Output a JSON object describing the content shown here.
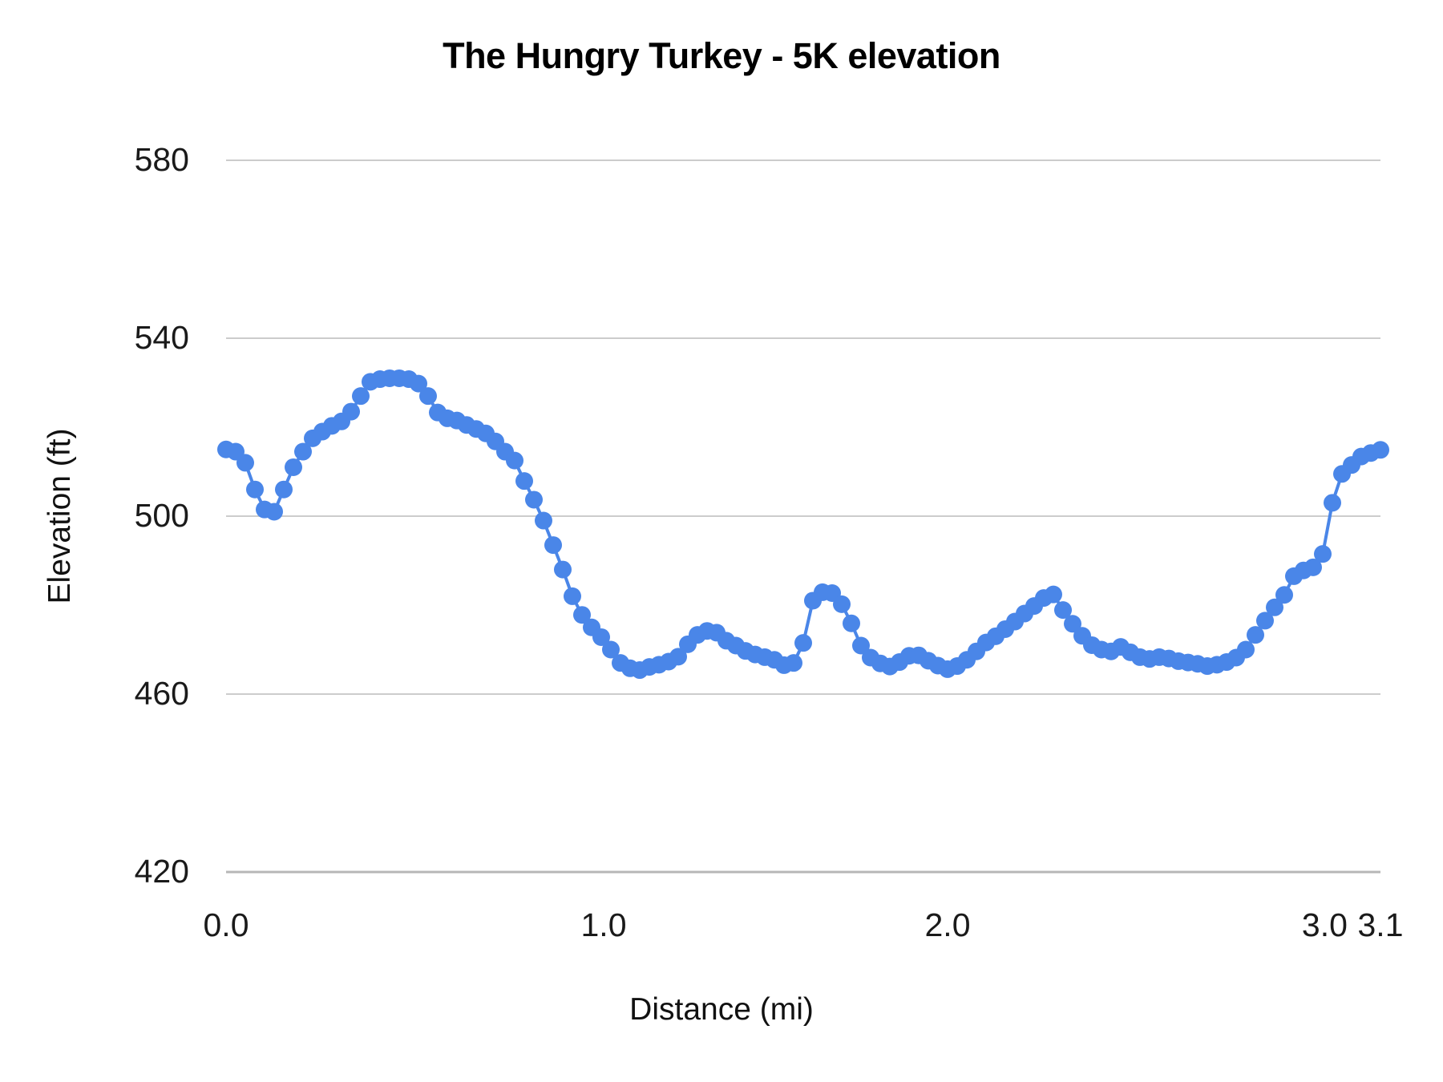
{
  "title": "The Hungry Turkey - 5K elevation",
  "chart_data": {
    "type": "line",
    "title": "The Hungry Turkey - 5K elevation",
    "xlabel": "Distance (mi)",
    "ylabel": "Elevation (ft)",
    "ylim": [
      420,
      580
    ],
    "grid": true,
    "legend": "none",
    "marker_color": "#4a86e8",
    "line_color": "#4a86e8",
    "grid_color": "#cccccc",
    "axis_line_color": "#b7b7b7",
    "y_ticks": [
      {
        "label": "580",
        "value": 580
      },
      {
        "label": "540",
        "value": 540
      },
      {
        "label": "500",
        "value": 500
      },
      {
        "label": "460",
        "value": 460
      },
      {
        "label": "420",
        "value": 420
      }
    ],
    "x_ticks": [
      {
        "label": "0.0",
        "index": 0
      },
      {
        "label": "1.0",
        "index": 39.25
      },
      {
        "label": "2.0",
        "index": 75
      },
      {
        "label": "3.0",
        "index": 114.2
      },
      {
        "label": "3.1",
        "index": 120
      }
    ],
    "distance_mi": [
      0,
      0.03,
      0.05,
      0.08,
      0.1,
      0.13,
      0.15,
      0.18,
      0.2,
      0.23,
      0.25,
      0.28,
      0.31,
      0.33,
      0.36,
      0.38,
      0.41,
      0.43,
      0.46,
      0.48,
      0.51,
      0.54,
      0.56,
      0.59,
      0.61,
      0.64,
      0.66,
      0.69,
      0.71,
      0.74,
      0.76,
      0.79,
      0.82,
      0.84,
      0.87,
      0.89,
      0.92,
      0.94,
      0.97,
      0.99,
      1.02,
      1.05,
      1.08,
      1.1,
      1.13,
      1.16,
      1.19,
      1.22,
      1.24,
      1.27,
      1.3,
      1.33,
      1.36,
      1.38,
      1.41,
      1.44,
      1.47,
      1.5,
      1.52,
      1.55,
      1.58,
      1.61,
      1.64,
      1.66,
      1.69,
      1.72,
      1.75,
      1.78,
      1.8,
      1.83,
      1.86,
      1.89,
      1.92,
      1.94,
      1.97,
      2,
      2.03,
      2.05,
      2.08,
      2.1,
      2.13,
      2.15,
      2.18,
      2.2,
      2.23,
      2.26,
      2.28,
      2.31,
      2.33,
      2.36,
      2.38,
      2.41,
      2.43,
      2.46,
      2.48,
      2.51,
      2.54,
      2.56,
      2.59,
      2.61,
      2.64,
      2.66,
      2.69,
      2.71,
      2.74,
      2.77,
      2.79,
      2.82,
      2.84,
      2.87,
      2.89,
      2.92,
      2.94,
      2.97,
      3,
      3.01,
      3.03,
      3.05,
      3.07,
      3.08,
      3.1
    ],
    "elevation_ft": [
      515,
      514.5,
      512,
      506,
      501.5,
      501,
      506,
      511,
      514.5,
      517.5,
      519,
      520.3,
      521.3,
      523.5,
      527,
      530.2,
      530.8,
      531,
      531,
      530.8,
      529.8,
      527,
      523.3,
      522,
      521.5,
      520.5,
      519.6,
      518.6,
      516.8,
      514.5,
      512.5,
      507.9,
      503.7,
      499,
      493.5,
      488,
      482,
      477.8,
      475,
      472.8,
      470,
      467,
      465.8,
      465.4,
      466.1,
      466.6,
      467.3,
      468.4,
      471.2,
      473.3,
      474.2,
      473.8,
      472,
      470.9,
      469.7,
      468.9,
      468.3,
      467.7,
      466.5,
      467,
      471.5,
      481,
      482.9,
      482.7,
      480.2,
      475.9,
      470.9,
      468.2,
      466.9,
      466.2,
      467.2,
      468.6,
      468.7,
      467.5,
      466.4,
      465.6,
      466.3,
      467.7,
      469.6,
      471.6,
      473,
      474.6,
      476.3,
      478.1,
      479.8,
      481.6,
      482.4,
      478.9,
      475.8,
      473.1,
      471,
      470,
      469.6,
      470.6,
      469.4,
      468.3,
      467.9,
      468.3,
      468,
      467.4,
      467.1,
      466.8,
      466.3,
      466.6,
      467.2,
      468.2,
      470,
      473.3,
      476.5,
      479.5,
      482.3,
      486.5,
      487.8,
      488.5,
      491.5,
      503,
      509.5,
      511.5,
      513.4,
      514.2,
      514.9
    ]
  }
}
